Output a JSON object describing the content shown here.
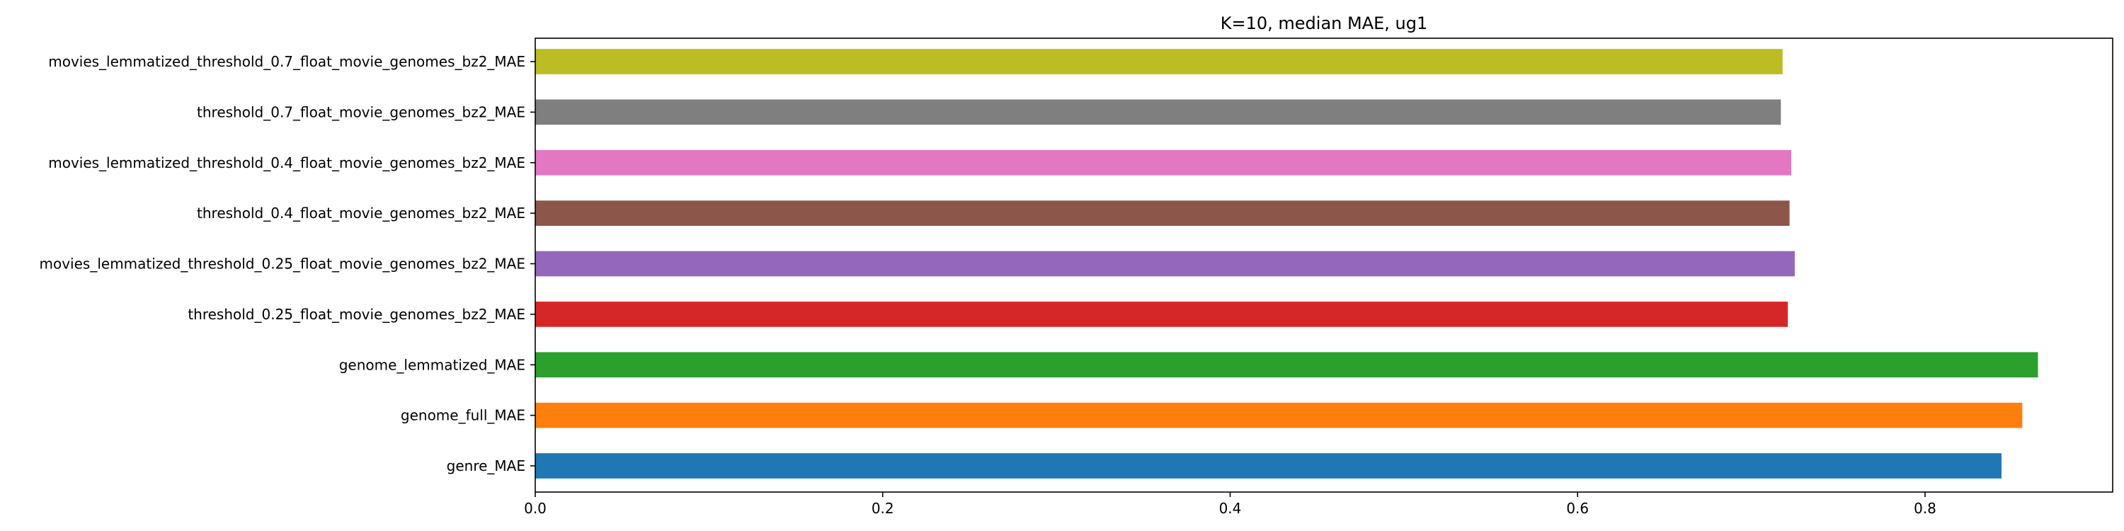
{
  "chart_data": {
    "type": "bar",
    "orientation": "horizontal",
    "title": "K=10, median MAE, ug1",
    "xlabel": "",
    "ylabel": "",
    "xlim": [
      0,
      0.908
    ],
    "xticks": [
      0.0,
      0.2,
      0.4,
      0.6,
      0.8
    ],
    "xtick_labels": [
      "0.0",
      "0.2",
      "0.4",
      "0.6",
      "0.8"
    ],
    "grid": false,
    "legend": "none",
    "categories": [
      "genre_MAE",
      "genome_full_MAE",
      "genome_lemmatized_MAE",
      "threshold_0.25_float_movie_genomes_bz2_MAE",
      "movies_lemmatized_threshold_0.25_float_movie_genomes_bz2_MAE",
      "threshold_0.4_float_movie_genomes_bz2_MAE",
      "movies_lemmatized_threshold_0.4_float_movie_genomes_bz2_MAE",
      "threshold_0.7_float_movie_genomes_bz2_MAE",
      "movies_lemmatized_threshold_0.7_float_movie_genomes_bz2_MAE"
    ],
    "values": [
      0.844,
      0.856,
      0.865,
      0.721,
      0.725,
      0.722,
      0.723,
      0.717,
      0.718
    ],
    "colors": [
      "#1f77b4",
      "#ff7f0e",
      "#2ca02c",
      "#d62728",
      "#9467bd",
      "#8c564b",
      "#e377c2",
      "#7f7f7f",
      "#bcbd22"
    ]
  }
}
